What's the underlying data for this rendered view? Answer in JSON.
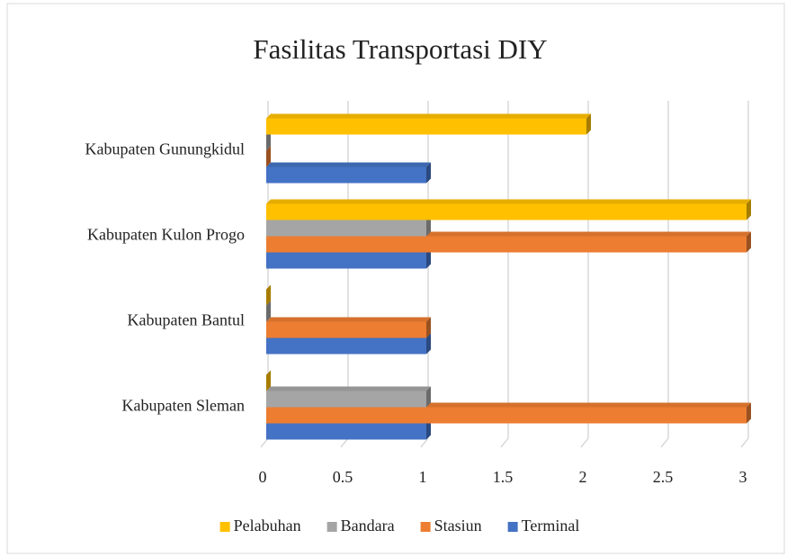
{
  "chart_data": {
    "type": "bar",
    "orientation": "horizontal",
    "title": "Fasilitas Transportasi DIY",
    "categories": [
      "Kabupaten Sleman",
      "Kabupaten Bantul",
      "Kabupaten Kulon Progo",
      "Kabupaten Gunungkidul"
    ],
    "series": [
      {
        "name": "Terminal",
        "color": "#4472c4",
        "values": [
          1,
          1,
          1,
          1
        ]
      },
      {
        "name": "Stasiun",
        "color": "#ed7d31",
        "values": [
          3,
          1,
          3,
          0
        ]
      },
      {
        "name": "Bandara",
        "color": "#a5a5a5",
        "values": [
          1,
          0,
          1,
          0
        ]
      },
      {
        "name": "Pelabuhan",
        "color": "#ffc000",
        "values": [
          0,
          0,
          3,
          2
        ]
      }
    ],
    "xlim": [
      0,
      3
    ],
    "xticks": [
      0,
      0.5,
      1,
      1.5,
      2,
      2.5,
      3
    ],
    "grid": true,
    "legend": "bottom"
  }
}
